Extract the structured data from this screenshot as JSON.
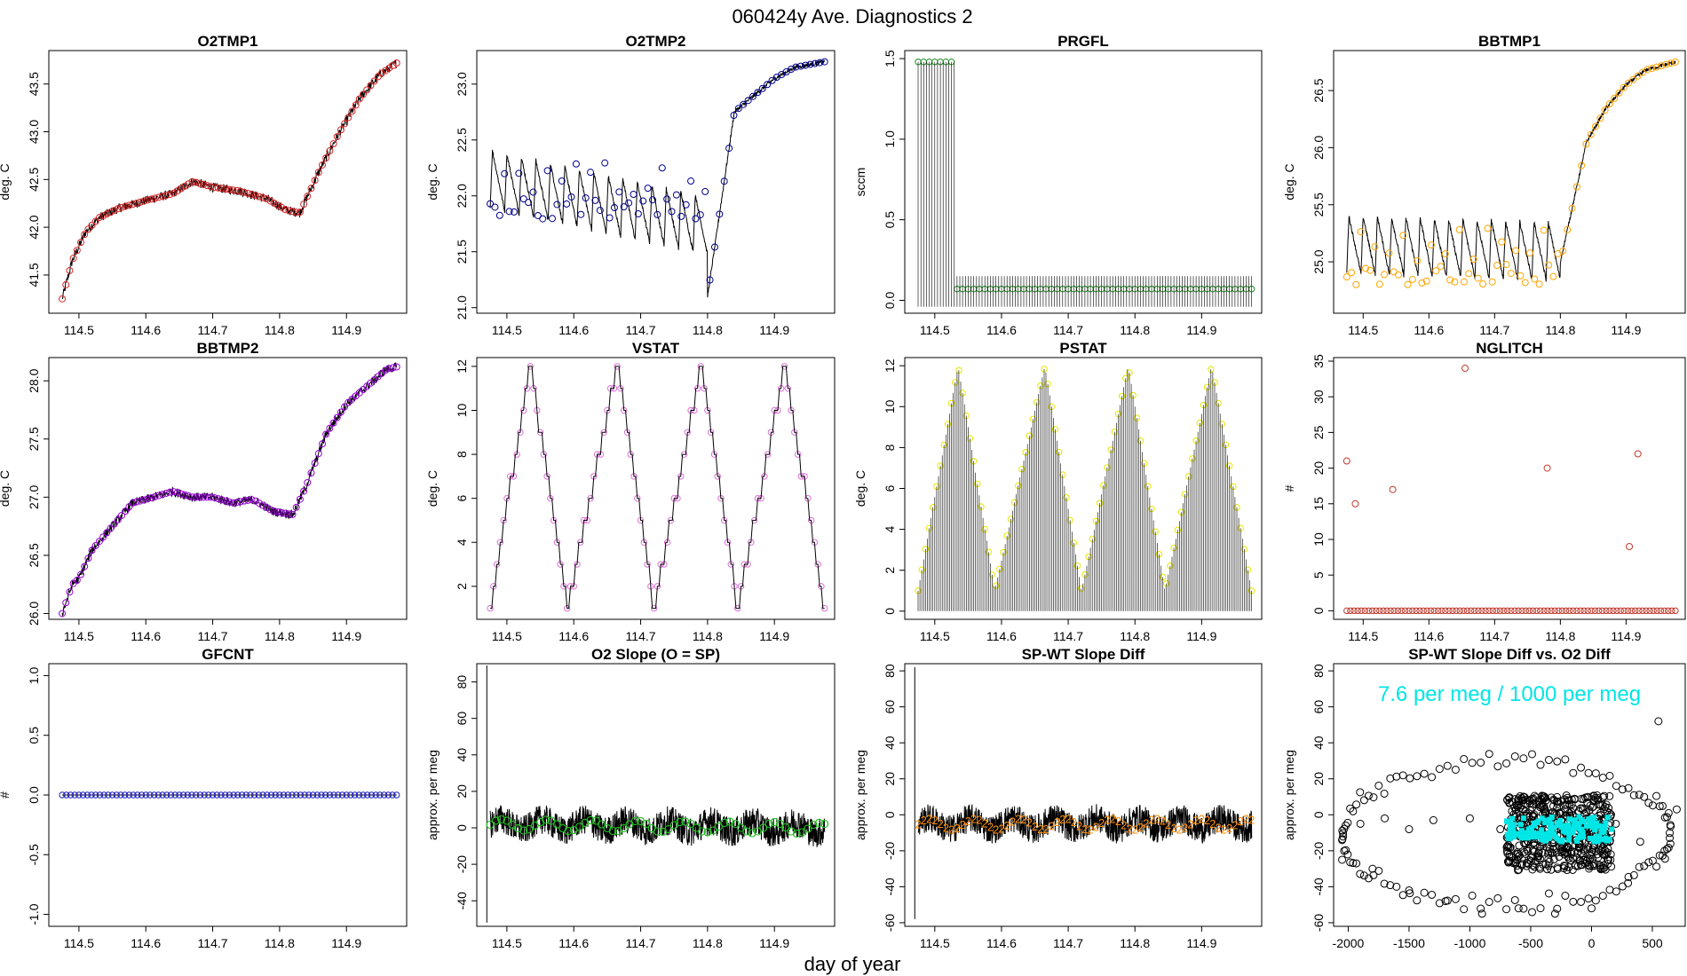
{
  "figure": {
    "title": "060424y   Ave. Diagnostics 2",
    "xlabel": "day of year"
  },
  "chart_data": [
    {
      "id": "o2tmp1",
      "type": "line",
      "title": "O2TMP1",
      "ylabel": "deg. C",
      "xlim": [
        114.455,
        114.99
      ],
      "ylim": [
        41.1,
        43.85
      ],
      "xticks": [
        114.5,
        114.6,
        114.7,
        114.8,
        114.9
      ],
      "yticks": [
        41.5,
        42.0,
        42.5,
        43.0,
        43.5
      ],
      "color": "#d62728",
      "x": [
        114.475,
        114.49,
        114.51,
        114.53,
        114.56,
        114.6,
        114.64,
        114.67,
        114.7,
        114.74,
        114.78,
        114.81,
        114.83,
        114.86,
        114.89,
        114.92,
        114.95,
        114.975
      ],
      "y": [
        41.25,
        41.65,
        41.95,
        42.1,
        42.2,
        42.28,
        42.35,
        42.48,
        42.42,
        42.38,
        42.3,
        42.18,
        42.15,
        42.6,
        43.0,
        43.35,
        43.6,
        43.72
      ]
    },
    {
      "id": "o2tmp2",
      "type": "sawtooth",
      "title": "O2TMP2",
      "ylabel": "deg. C",
      "xlim": [
        114.455,
        114.99
      ],
      "ylim": [
        20.95,
        23.3
      ],
      "xticks": [
        114.5,
        114.6,
        114.7,
        114.8,
        114.9
      ],
      "yticks": [
        21.0,
        21.5,
        22.0,
        22.5,
        23.0
      ],
      "color": "#00008b",
      "x": [
        114.475,
        114.8,
        114.84,
        114.87,
        114.9,
        114.93,
        114.975
      ],
      "y": [
        22.15,
        21.1,
        22.75,
        22.9,
        23.05,
        23.15,
        23.2
      ]
    },
    {
      "id": "prgfl",
      "type": "spikes",
      "title": "PRGFL",
      "ylabel": "sccm",
      "xlim": [
        114.455,
        114.99
      ],
      "ylim": [
        -0.08,
        1.55
      ],
      "xticks": [
        114.5,
        114.6,
        114.7,
        114.8,
        114.9
      ],
      "yticks": [
        0.0,
        0.5,
        1.0,
        1.5
      ],
      "color": "#228b22",
      "x": [
        114.475,
        114.53,
        114.975
      ],
      "y": [
        1.48,
        0.07,
        0.06
      ]
    },
    {
      "id": "bbtmp1",
      "type": "sawtooth",
      "title": "BBTMP1",
      "ylabel": "deg. C",
      "xlim": [
        114.455,
        114.99
      ],
      "ylim": [
        24.55,
        26.85
      ],
      "xticks": [
        114.5,
        114.6,
        114.7,
        114.8,
        114.9
      ],
      "yticks": [
        25.0,
        25.5,
        26.0,
        26.5
      ],
      "color": "#ffa500",
      "x": [
        114.475,
        114.8,
        114.84,
        114.87,
        114.9,
        114.93,
        114.975
      ],
      "y": [
        25.15,
        25.0,
        26.05,
        26.35,
        26.55,
        26.68,
        26.75
      ]
    },
    {
      "id": "bbtmp2",
      "type": "line",
      "title": "BBTMP2",
      "ylabel": "deg. C",
      "xlim": [
        114.455,
        114.99
      ],
      "ylim": [
        25.95,
        28.2
      ],
      "xticks": [
        114.5,
        114.6,
        114.7,
        114.8,
        114.9
      ],
      "yticks": [
        26.0,
        26.5,
        27.0,
        27.5,
        28.0
      ],
      "color": "#9400d3",
      "x": [
        114.475,
        114.49,
        114.5,
        114.52,
        114.55,
        114.58,
        114.6,
        114.64,
        114.67,
        114.7,
        114.73,
        114.76,
        114.79,
        114.82,
        114.84,
        114.87,
        114.9,
        114.93,
        114.96,
        114.975
      ],
      "y": [
        26.0,
        26.25,
        26.3,
        26.55,
        26.75,
        26.95,
        26.98,
        27.05,
        27.0,
        27.0,
        26.95,
        26.98,
        26.88,
        26.85,
        27.1,
        27.55,
        27.8,
        27.95,
        28.1,
        28.12
      ]
    },
    {
      "id": "vstat",
      "type": "steps",
      "title": "VSTAT",
      "ylabel": "deg. C",
      "xlim": [
        114.455,
        114.99
      ],
      "ylim": [
        0.5,
        12.4
      ],
      "xticks": [
        114.5,
        114.6,
        114.7,
        114.8,
        114.9
      ],
      "yticks": [
        2,
        4,
        6,
        8,
        10,
        12
      ],
      "color": "#da70d6",
      "x": [
        114.475,
        114.535,
        114.59,
        114.665,
        114.72,
        114.79,
        114.845,
        114.915,
        114.975
      ],
      "y": [
        1,
        12,
        1,
        12,
        1,
        12,
        1,
        12,
        1
      ]
    },
    {
      "id": "pstat",
      "type": "spikes",
      "title": "PSTAT",
      "ylabel": "deg. C",
      "xlim": [
        114.455,
        114.99
      ],
      "ylim": [
        -0.4,
        12.4
      ],
      "xticks": [
        114.5,
        114.6,
        114.7,
        114.8,
        114.9
      ],
      "yticks": [
        0,
        2,
        4,
        6,
        8,
        10,
        12
      ],
      "color": "#ffff00",
      "x": [
        114.475,
        114.535,
        114.59,
        114.665,
        114.72,
        114.79,
        114.845,
        114.915,
        114.975
      ],
      "y": [
        1,
        12,
        1,
        12,
        1,
        12,
        1,
        12,
        1
      ]
    },
    {
      "id": "nglitch",
      "type": "scatter",
      "title": "NGLITCH",
      "ylabel": "#",
      "xlim": [
        114.455,
        114.99
      ],
      "ylim": [
        -1.2,
        35.5
      ],
      "xticks": [
        114.5,
        114.6,
        114.7,
        114.8,
        114.9
      ],
      "yticks": [
        0,
        5,
        10,
        15,
        20,
        25,
        30,
        35
      ],
      "color": "#c0392b",
      "x": [
        114.475,
        114.488,
        114.545,
        114.655,
        114.78,
        114.905,
        114.918
      ],
      "y": [
        21,
        15,
        17,
        34,
        20,
        9,
        22
      ]
    },
    {
      "id": "gfcnt",
      "type": "scatter",
      "title": "GFCNT",
      "ylabel": "#",
      "xlim": [
        114.455,
        114.99
      ],
      "ylim": [
        -1.1,
        1.1
      ],
      "xticks": [
        114.5,
        114.6,
        114.7,
        114.8,
        114.9
      ],
      "yticks": [
        -1.0,
        -0.5,
        0.0,
        0.5,
        1.0
      ],
      "color": "#2020c0",
      "x": [
        114.475,
        114.975
      ],
      "y": [
        0,
        0
      ]
    },
    {
      "id": "o2slope",
      "type": "noise",
      "title": "O2 Slope (O = SP)",
      "ylabel": "approx. per meg",
      "xlim": [
        114.455,
        114.99
      ],
      "ylim": [
        -54,
        90
      ],
      "xticks": [
        114.5,
        114.6,
        114.7,
        114.8,
        114.9
      ],
      "yticks": [
        -40,
        -20,
        0,
        20,
        40,
        60,
        80
      ],
      "color": "#22c022",
      "x": [
        114.475,
        114.975
      ],
      "y": [
        2,
        0
      ],
      "spike": [
        89,
        -52
      ]
    },
    {
      "id": "spwt",
      "type": "noise",
      "title": "SP-WT Slope Diff",
      "ylabel": "approx. per meg",
      "xlim": [
        114.455,
        114.99
      ],
      "ylim": [
        -62,
        84
      ],
      "xticks": [
        114.5,
        114.6,
        114.7,
        114.8,
        114.9
      ],
      "yticks": [
        -60,
        -40,
        -20,
        0,
        20,
        40,
        60,
        80
      ],
      "color": "#ff8c00",
      "x": [
        114.475,
        114.975
      ],
      "y": [
        -5,
        -5
      ],
      "spike": [
        82,
        -58
      ]
    },
    {
      "id": "spwt_vs_o2",
      "type": "scatter",
      "title": "SP-WT Slope Diff vs. O2 Diff",
      "ylabel": "approx. per meg",
      "xlim": [
        -2120,
        770
      ],
      "ylim": [
        -62,
        84
      ],
      "xticks": [
        -2000,
        -1500,
        -1000,
        -500,
        0,
        500
      ],
      "yticks": [
        -60,
        -40,
        -20,
        0,
        20,
        40,
        60,
        80
      ],
      "color": "#000000",
      "annotation": "7.6 per meg / 1000 per meg",
      "x": [
        -2050,
        -1900,
        -1700,
        -1500,
        -1300,
        -1000,
        -750,
        -500,
        -250,
        0,
        200,
        400,
        600,
        700,
        -1800,
        -1500,
        -1200,
        -900,
        -600,
        -300,
        0,
        300,
        550
      ],
      "y": [
        -25,
        -5,
        -2,
        -8,
        -3,
        -2,
        -8,
        -5,
        -3,
        -6,
        -5,
        -15,
        -20,
        3,
        -30,
        -42,
        -48,
        -55,
        -52,
        -55,
        -52,
        -38,
        52
      ]
    }
  ]
}
